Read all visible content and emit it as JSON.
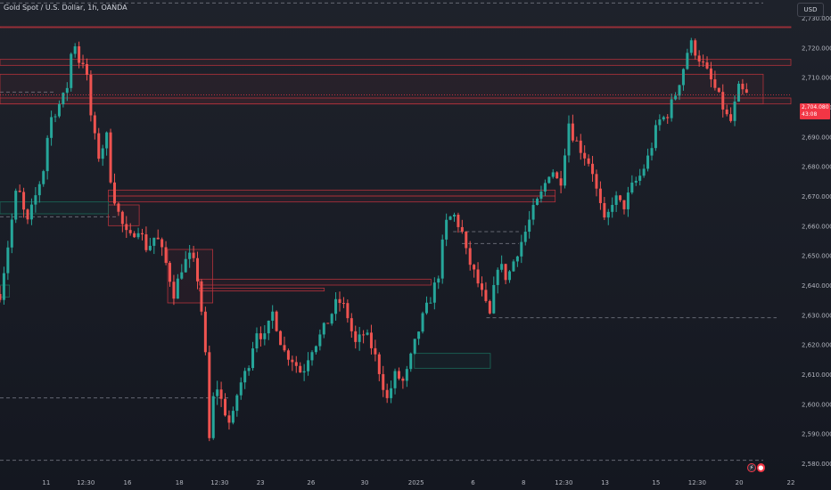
{
  "header": {
    "title": "Gold Spot / U.S. Dollar, 1h, OANDA",
    "currency_button": "USD"
  },
  "price_tag": {
    "price": "2,704.080",
    "countdown": "43:08"
  },
  "watermark": {
    "icon_left": "logo-flash-icon",
    "icon_right": "logo-record-icon"
  },
  "colors": {
    "background": "#1e222b",
    "up": "#26a69a",
    "down": "#ef5350",
    "zone_red": "#b2323b",
    "zone_green": "#1b6b5a",
    "dashed": "#787b86",
    "price_tag": "#f23645"
  },
  "chart_data": {
    "type": "candlestick",
    "title": "Gold Spot / U.S. Dollar, 1h, OANDA",
    "ylim": [
      2577,
      2736
    ],
    "y_ticks": [
      2580,
      2590,
      2600,
      2610,
      2620,
      2630,
      2640,
      2650,
      2660,
      2670,
      2680,
      2690,
      2700,
      2710,
      2720,
      2730
    ],
    "y_tick_labels": [
      "2,580.000",
      "2,590.000",
      "2,600.000",
      "2,610.000",
      "2,620.000",
      "2,630.000",
      "2,640.000",
      "2,650.000",
      "2,660.000",
      "2,670.000",
      "2,680.000",
      "2,690.000",
      "2,700.000",
      "2,710.000",
      "2,720.000",
      "2,730.000"
    ],
    "x_ticks": [
      {
        "label": "11",
        "pos": 0.0585
      },
      {
        "label": "12:30",
        "pos": 0.1085
      },
      {
        "label": "16",
        "pos": 0.1612
      },
      {
        "label": "18",
        "pos": 0.2269
      },
      {
        "label": "12:30",
        "pos": 0.2777
      },
      {
        "label": "23",
        "pos": 0.3294
      },
      {
        "label": "26",
        "pos": 0.3933
      },
      {
        "label": "30",
        "pos": 0.4611
      },
      {
        "label": "2025",
        "pos": 0.5261
      },
      {
        "label": "6",
        "pos": 0.5981
      },
      {
        "label": "8",
        "pos": 0.6621
      },
      {
        "label": "12:30",
        "pos": 0.7129
      },
      {
        "label": "13",
        "pos": 0.765
      },
      {
        "label": "15",
        "pos": 0.8296
      },
      {
        "label": "12:30",
        "pos": 0.8815
      },
      {
        "label": "20",
        "pos": 0.9347
      },
      {
        "label": "22",
        "pos": 1.0
      }
    ],
    "price_path": [
      [
        0.0,
        2637
      ],
      [
        0.011,
        2655
      ],
      [
        0.022,
        2674
      ],
      [
        0.034,
        2660
      ],
      [
        0.045,
        2670
      ],
      [
        0.056,
        2680
      ],
      [
        0.062,
        2695
      ],
      [
        0.073,
        2700
      ],
      [
        0.084,
        2705
      ],
      [
        0.09,
        2718
      ],
      [
        0.096,
        2722
      ],
      [
        0.102,
        2712
      ],
      [
        0.107,
        2718
      ],
      [
        0.113,
        2700
      ],
      [
        0.124,
        2683
      ],
      [
        0.135,
        2690
      ],
      [
        0.141,
        2673
      ],
      [
        0.152,
        2662
      ],
      [
        0.163,
        2655
      ],
      [
        0.174,
        2660
      ],
      [
        0.186,
        2652
      ],
      [
        0.197,
        2657
      ],
      [
        0.209,
        2648
      ],
      [
        0.22,
        2637
      ],
      [
        0.231,
        2647
      ],
      [
        0.242,
        2650
      ],
      [
        0.252,
        2640
      ],
      [
        0.26,
        2615
      ],
      [
        0.264,
        2586
      ],
      [
        0.272,
        2608
      ],
      [
        0.281,
        2600
      ],
      [
        0.292,
        2592
      ],
      [
        0.301,
        2605
      ],
      [
        0.313,
        2612
      ],
      [
        0.324,
        2625
      ],
      [
        0.335,
        2622
      ],
      [
        0.345,
        2631
      ],
      [
        0.358,
        2618
      ],
      [
        0.37,
        2615
      ],
      [
        0.382,
        2610
      ],
      [
        0.392,
        2618
      ],
      [
        0.403,
        2622
      ],
      [
        0.415,
        2628
      ],
      [
        0.427,
        2635
      ],
      [
        0.437,
        2632
      ],
      [
        0.449,
        2620
      ],
      [
        0.461,
        2624
      ],
      [
        0.472,
        2618
      ],
      [
        0.483,
        2608
      ],
      [
        0.489,
        2601
      ],
      [
        0.5,
        2610
      ],
      [
        0.511,
        2607
      ],
      [
        0.522,
        2618
      ],
      [
        0.533,
        2628
      ],
      [
        0.545,
        2636
      ],
      [
        0.556,
        2645
      ],
      [
        0.562,
        2660
      ],
      [
        0.573,
        2664
      ],
      [
        0.584,
        2658
      ],
      [
        0.59,
        2650
      ],
      [
        0.601,
        2643
      ],
      [
        0.612,
        2635
      ],
      [
        0.619,
        2629
      ],
      [
        0.63,
        2648
      ],
      [
        0.641,
        2642
      ],
      [
        0.652,
        2650
      ],
      [
        0.663,
        2657
      ],
      [
        0.674,
        2665
      ],
      [
        0.685,
        2671
      ],
      [
        0.697,
        2680
      ],
      [
        0.708,
        2673
      ],
      [
        0.719,
        2695
      ],
      [
        0.725,
        2690
      ],
      [
        0.736,
        2685
      ],
      [
        0.748,
        2680
      ],
      [
        0.754,
        2672
      ],
      [
        0.765,
        2660
      ],
      [
        0.776,
        2670
      ],
      [
        0.788,
        2666
      ],
      [
        0.799,
        2673
      ],
      [
        0.81,
        2677
      ],
      [
        0.821,
        2684
      ],
      [
        0.832,
        2695
      ],
      [
        0.843,
        2697
      ],
      [
        0.855,
        2705
      ],
      [
        0.866,
        2715
      ],
      [
        0.872,
        2722
      ],
      [
        0.883,
        2717
      ],
      [
        0.895,
        2711
      ],
      [
        0.906,
        2705
      ],
      [
        0.917,
        2698
      ],
      [
        0.923,
        2694
      ],
      [
        0.934,
        2706
      ],
      [
        0.944,
        2704
      ]
    ],
    "zones": [
      {
        "color": "red",
        "x0": 0.0,
        "x1": 1.0,
        "y_top": 2727,
        "y_bot": 2727
      },
      {
        "color": "red",
        "x0": 0.0,
        "x1": 1.0,
        "y_top": 2716,
        "y_bot": 2714
      },
      {
        "color": "red",
        "x0": 0.0,
        "x1": 0.965,
        "y_top": 2711,
        "y_bot": 2701
      },
      {
        "color": "red",
        "x0": 0.0,
        "x1": 1.0,
        "y_top": 2703,
        "y_bot": 2701
      },
      {
        "color": "red",
        "x0": 0.137,
        "x1": 0.702,
        "y_top": 2672,
        "y_bot": 2670
      },
      {
        "color": "red",
        "x0": 0.137,
        "x1": 0.702,
        "y_top": 2670,
        "y_bot": 2668
      },
      {
        "color": "red",
        "x0": 0.137,
        "x1": 0.176,
        "y_top": 2667,
        "y_bot": 2660
      },
      {
        "color": "red",
        "x0": 0.212,
        "x1": 0.269,
        "y_top": 2652,
        "y_bot": 2634
      },
      {
        "color": "red",
        "x0": 0.252,
        "x1": 0.545,
        "y_top": 2642,
        "y_bot": 2640
      },
      {
        "color": "red",
        "x0": 0.252,
        "x1": 0.41,
        "y_top": 2639,
        "y_bot": 2638
      },
      {
        "color": "green",
        "x0": 0.0,
        "x1": 0.137,
        "y_top": 2668,
        "y_bot": 2664
      },
      {
        "color": "green",
        "x0": 0.0,
        "x1": 0.012,
        "y_top": 2640,
        "y_bot": 2636
      },
      {
        "color": "green",
        "x0": 0.524,
        "x1": 0.62,
        "y_top": 2617,
        "y_bot": 2612
      }
    ],
    "dashed_levels": [
      {
        "value": 2735,
        "x0": 0.0,
        "x1": 0.965
      },
      {
        "value": 2705,
        "x0": 0.0,
        "x1": 0.07
      },
      {
        "value": 2663,
        "x0": 0.0,
        "x1": 0.15
      },
      {
        "value": 2658,
        "x0": 0.573,
        "x1": 0.656
      },
      {
        "value": 2654,
        "x0": 0.584,
        "x1": 0.656
      },
      {
        "value": 2629,
        "x0": 0.615,
        "x1": 0.982
      },
      {
        "value": 2602,
        "x0": 0.0,
        "x1": 0.29
      },
      {
        "value": 2581,
        "x0": 0.0,
        "x1": 0.965
      }
    ],
    "current_price": 2704.08
  }
}
